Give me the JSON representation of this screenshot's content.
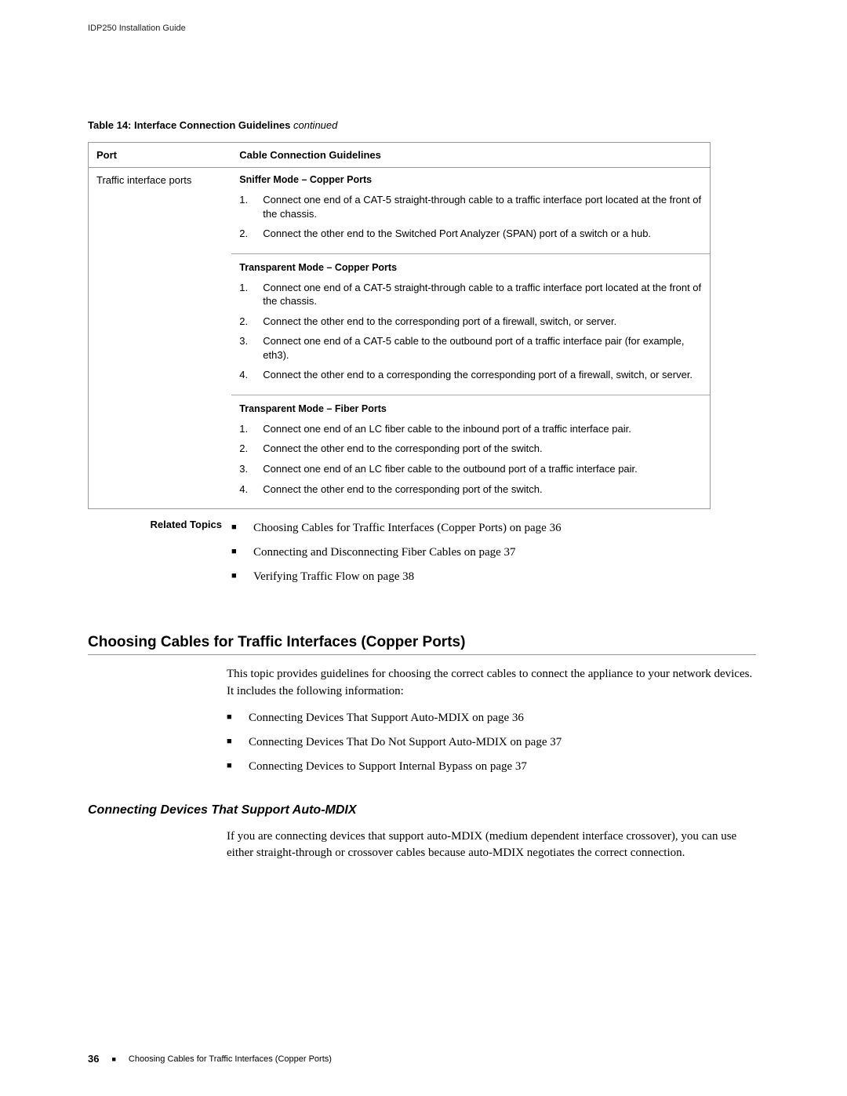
{
  "document": {
    "running_header": "IDP250 Installation Guide",
    "page_number": "36",
    "footer_text": "Choosing Cables for Traffic Interfaces (Copper Ports)"
  },
  "table": {
    "caption_bold": "Table 14: Interface Connection Guidelines",
    "caption_italic": " continued",
    "header_port": "Port",
    "header_guidelines": "Cable Connection Guidelines",
    "row_port_label": "Traffic interface ports",
    "modes": [
      {
        "title": "Sniffer Mode – Copper Ports",
        "steps": [
          "Connect one end of a CAT-5 straight-through cable to a traffic interface port located at the front of the chassis.",
          "Connect the other end to the Switched Port Analyzer (SPAN) port of a switch or a hub."
        ]
      },
      {
        "title": "Transparent Mode – Copper Ports",
        "steps": [
          "Connect one end of a CAT-5 straight-through cable to a traffic interface port located at the front of the chassis.",
          "Connect the other end to the corresponding port of a firewall, switch, or server.",
          "Connect one end of a CAT-5 cable to the outbound port of a traffic interface pair (for example, eth3).",
          "Connect the other end to a corresponding the corresponding port of a firewall, switch, or server."
        ]
      },
      {
        "title": "Transparent Mode – Fiber Ports",
        "steps": [
          "Connect one end of an LC fiber cable to the inbound port of a traffic interface pair.",
          "Connect the other end to the corresponding port of the switch.",
          "Connect one end of an LC fiber cable to the outbound port of a traffic interface pair.",
          "Connect the other end to the corresponding port of the switch."
        ]
      }
    ]
  },
  "related": {
    "label": "Related Topics",
    "items": [
      "Choosing Cables for Traffic Interfaces (Copper Ports) on page 36",
      "Connecting and Disconnecting Fiber Cables on page 37",
      "Verifying Traffic Flow on page 38"
    ]
  },
  "section": {
    "heading": "Choosing Cables for Traffic Interfaces (Copper Ports)",
    "intro": "This topic provides guidelines for choosing the correct cables to connect the appliance to your network devices. It includes the following information:",
    "toc": [
      "Connecting Devices That Support Auto-MDIX on page 36",
      "Connecting Devices That Do Not Support Auto-MDIX on page 37",
      "Connecting Devices to Support Internal Bypass on page 37"
    ],
    "subheading": "Connecting Devices That Support Auto-MDIX",
    "subbody": "If you are connecting devices that support auto-MDIX (medium dependent interface crossover), you can use either straight-through or crossover cables because auto-MDIX negotiates the correct connection."
  },
  "colors": {
    "text": "#000000",
    "border": "#999999",
    "background": "#ffffff"
  }
}
